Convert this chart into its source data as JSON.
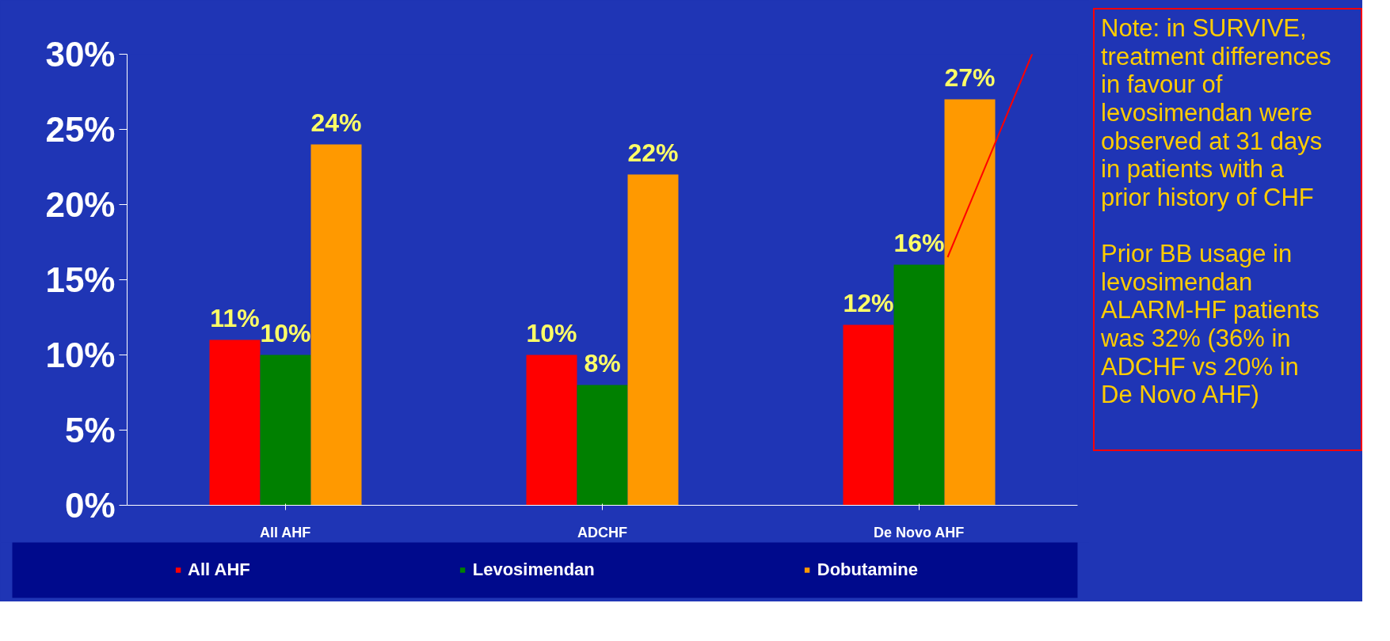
{
  "chart_data": {
    "type": "bar",
    "categories": [
      "All AHF",
      "ADCHF",
      "De Novo AHF"
    ],
    "series": [
      {
        "name": "All AHF",
        "color": "#ff0000",
        "values": [
          11,
          10,
          12
        ],
        "value_labels": [
          "11%",
          "10%",
          "12%"
        ]
      },
      {
        "name": "Levosimendan",
        "color": "#008000",
        "values": [
          10,
          8,
          16
        ],
        "value_labels": [
          "10%",
          "8%",
          "16%"
        ]
      },
      {
        "name": "Dobutamine",
        "color": "#ff9900",
        "values": [
          24,
          22,
          27
        ],
        "value_labels": [
          "24%",
          "22%",
          "27%"
        ]
      }
    ],
    "ylim": [
      0,
      30
    ],
    "yticks": [
      {
        "value": 0,
        "label": "0%"
      },
      {
        "value": 5,
        "label": "5%"
      },
      {
        "value": 10,
        "label": "10%"
      },
      {
        "value": 15,
        "label": "15%"
      },
      {
        "value": 20,
        "label": "20%"
      },
      {
        "value": 25,
        "label": "25%"
      },
      {
        "value": 30,
        "label": "30%"
      }
    ],
    "legend": "bottom",
    "annotations": [
      "Note: in SURVIVE,\ntreatment differences\nin favour of\nlevosimendan were\nobserved at 31 days\nin patients with a\nprior history of CHF\n\nPrior BB usage in\nlevosimendan\nALARM-HF patients\nwas 32% (36% in\nADCHF vs 20% in\nDe Novo AHF)"
    ]
  }
}
